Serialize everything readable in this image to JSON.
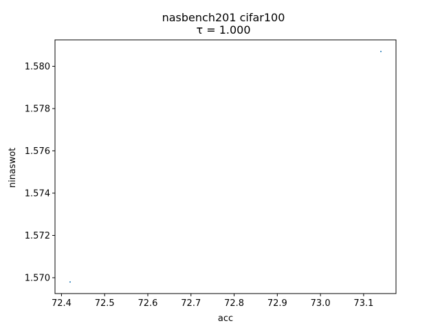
{
  "chart_data": {
    "type": "scatter",
    "title": "nasbench201 cifar100",
    "subtitle": "τ = 1.000",
    "xlabel": "acc",
    "ylabel": "ninaswot",
    "xlim": [
      72.385,
      73.175
    ],
    "ylim": [
      1.56925,
      1.58125
    ],
    "xticks": [
      "72.4",
      "72.5",
      "72.6",
      "72.7",
      "72.8",
      "72.9",
      "73.0",
      "73.1"
    ],
    "yticks": [
      "1.570",
      "1.572",
      "1.574",
      "1.576",
      "1.578",
      "1.580"
    ],
    "grid": false,
    "series": [
      {
        "color": "#1f77b4",
        "points": [
          {
            "x": 72.42,
            "y": 1.5698
          },
          {
            "x": 73.14,
            "y": 1.5807
          }
        ]
      }
    ]
  }
}
